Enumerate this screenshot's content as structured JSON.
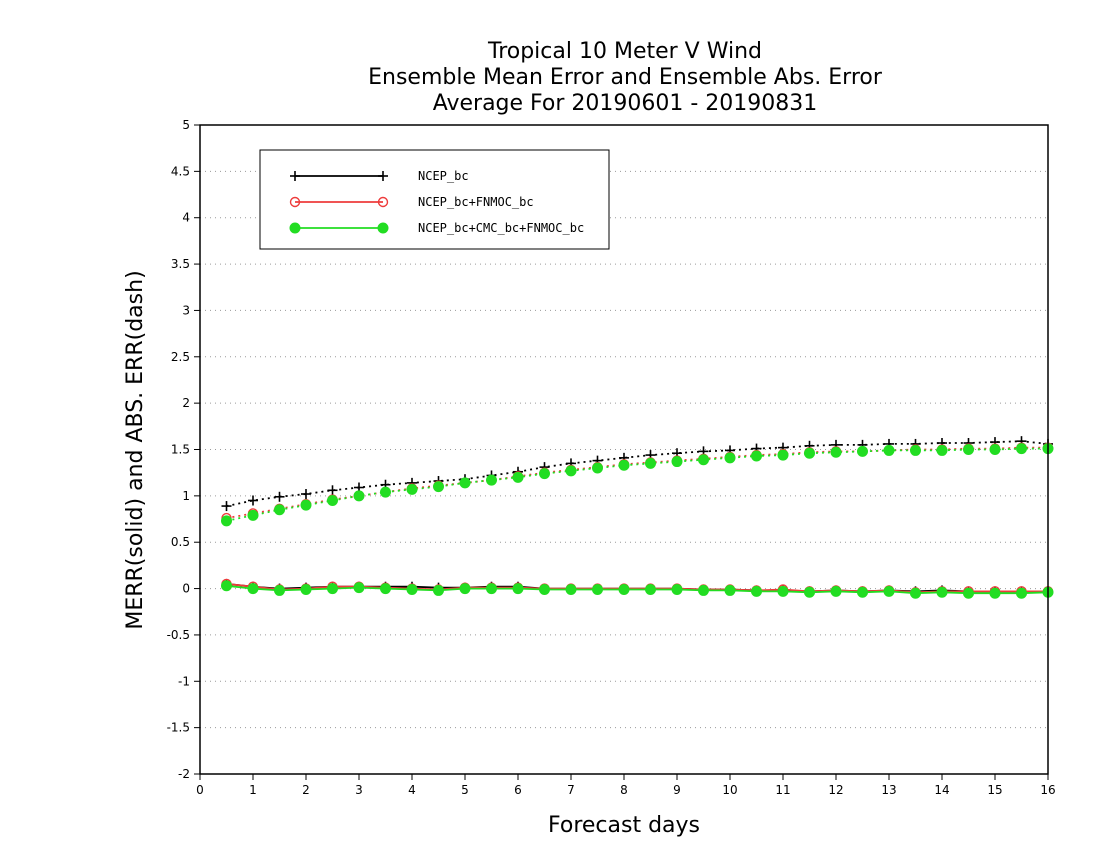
{
  "chart_data": {
    "type": "line",
    "title_lines": [
      "Tropical 10 Meter V Wind",
      "Ensemble Mean Error and Ensemble Abs. Error",
      "Average For 20190601 - 20190831"
    ],
    "xlabel": "Forecast days",
    "ylabel": "MERR(solid) and ABS. ERR(dash)",
    "xlim": [
      0,
      16
    ],
    "ylim": [
      -2,
      5
    ],
    "x_ticks": [
      0,
      1,
      2,
      3,
      4,
      5,
      6,
      7,
      8,
      9,
      10,
      11,
      12,
      13,
      14,
      15,
      16
    ],
    "y_ticks": [
      -2,
      -1.5,
      -1,
      -0.5,
      0,
      0.5,
      1,
      1.5,
      2,
      2.5,
      3,
      3.5,
      4,
      4.5,
      5
    ],
    "y_tick_labels": [
      "-2",
      "-1.5",
      "-1",
      "-0.5",
      "0",
      "0.5",
      "1",
      "1.5",
      "2",
      "2.5",
      "3",
      "3.5",
      "4",
      "4.5",
      "5"
    ],
    "grid": "horizontal-dotted",
    "legend_position": "top-left",
    "x": [
      0.5,
      1,
      1.5,
      2,
      2.5,
      3,
      3.5,
      4,
      4.5,
      5,
      5.5,
      6,
      6.5,
      7,
      7.5,
      8,
      8.5,
      9,
      9.5,
      10,
      10.5,
      11,
      11.5,
      12,
      12.5,
      13,
      13.5,
      14,
      14.5,
      15,
      15.5,
      16
    ],
    "series": [
      {
        "name": "NCEP_bc",
        "color": "#000000",
        "marker": "plus",
        "merr": [
          0.05,
          0.02,
          0.0,
          0.01,
          0.02,
          0.02,
          0.02,
          0.02,
          0.01,
          0.01,
          0.02,
          0.02,
          0.0,
          0.0,
          0.0,
          0.0,
          0.0,
          0.0,
          -0.01,
          -0.01,
          -0.02,
          -0.02,
          -0.03,
          -0.02,
          -0.03,
          -0.02,
          -0.03,
          -0.02,
          -0.03,
          -0.03,
          -0.03,
          -0.03
        ],
        "abs_err": [
          0.89,
          0.95,
          0.99,
          1.02,
          1.06,
          1.09,
          1.12,
          1.14,
          1.16,
          1.18,
          1.22,
          1.26,
          1.31,
          1.35,
          1.38,
          1.41,
          1.44,
          1.46,
          1.48,
          1.49,
          1.51,
          1.52,
          1.54,
          1.55,
          1.55,
          1.56,
          1.56,
          1.57,
          1.57,
          1.58,
          1.59,
          1.56
        ]
      },
      {
        "name": "NCEP_bc+FNMOC_bc",
        "color": "#ee3b3b",
        "marker": "open-circle",
        "merr": [
          0.05,
          0.02,
          -0.01,
          0.0,
          0.02,
          0.02,
          0.01,
          0.0,
          -0.01,
          0.01,
          0.01,
          0.01,
          0.0,
          0.0,
          0.0,
          0.0,
          0.0,
          0.0,
          -0.01,
          -0.01,
          -0.02,
          -0.01,
          -0.03,
          -0.02,
          -0.03,
          -0.02,
          -0.04,
          -0.03,
          -0.03,
          -0.03,
          -0.03,
          -0.03
        ],
        "abs_err": [
          0.76,
          0.81,
          0.86,
          0.91,
          0.96,
          1.0,
          1.04,
          1.08,
          1.11,
          1.14,
          1.17,
          1.21,
          1.25,
          1.28,
          1.31,
          1.34,
          1.36,
          1.38,
          1.4,
          1.42,
          1.44,
          1.45,
          1.47,
          1.48,
          1.48,
          1.49,
          1.5,
          1.5,
          1.51,
          1.51,
          1.52,
          1.52
        ]
      },
      {
        "name": "NCEP_bc+CMC_bc+FNMOC_bc",
        "color": "#22dd22",
        "marker": "filled-circle",
        "merr": [
          0.03,
          0.0,
          -0.02,
          -0.01,
          0.0,
          0.01,
          0.0,
          -0.01,
          -0.02,
          0.0,
          0.0,
          0.0,
          -0.01,
          -0.01,
          -0.01,
          -0.01,
          -0.01,
          -0.01,
          -0.02,
          -0.02,
          -0.03,
          -0.03,
          -0.04,
          -0.03,
          -0.04,
          -0.03,
          -0.05,
          -0.04,
          -0.05,
          -0.05,
          -0.05,
          -0.04
        ],
        "abs_err": [
          0.73,
          0.79,
          0.85,
          0.9,
          0.95,
          1.0,
          1.04,
          1.07,
          1.1,
          1.14,
          1.17,
          1.2,
          1.24,
          1.27,
          1.3,
          1.33,
          1.35,
          1.37,
          1.39,
          1.41,
          1.43,
          1.44,
          1.46,
          1.47,
          1.48,
          1.49,
          1.49,
          1.49,
          1.5,
          1.5,
          1.51,
          1.51
        ]
      }
    ]
  }
}
